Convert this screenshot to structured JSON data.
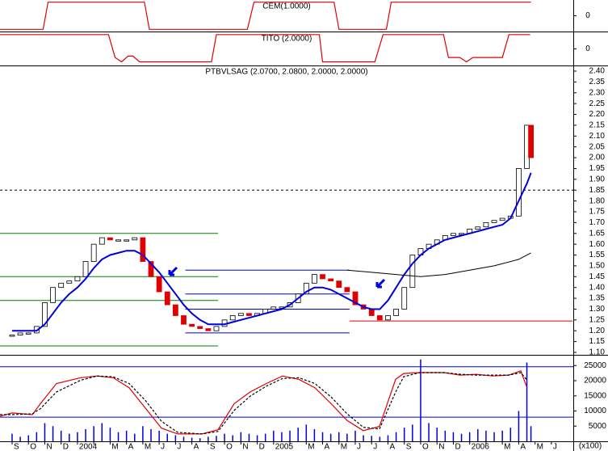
{
  "chart_data": [
    {
      "type": "step",
      "title": "CEM(1.0000)",
      "color": "#e00000",
      "xlim": [
        -0.74,
        34.34
      ],
      "ylim": [
        -1.1,
        1.1
      ],
      "yticks": [
        0
      ],
      "x": [
        -0.74,
        1.9,
        2.2,
        8.1,
        8.4,
        14.4,
        14.8,
        19.7,
        20,
        22.9,
        23.2,
        31.75
      ],
      "values": [
        -1,
        -1,
        1,
        1,
        -1,
        -1,
        1,
        1,
        -1,
        -1,
        1,
        1
      ]
    },
    {
      "type": "step",
      "title": "TITO (2.0000)",
      "color": "#e00000",
      "xlim": [
        -0.74,
        34.34
      ],
      "ylim": [
        -1.1,
        1.1
      ],
      "yticks": [
        0
      ],
      "x": [
        -0.74,
        5.9,
        6.3,
        6.7,
        7.1,
        7.4,
        7.8,
        12.2,
        12.5,
        18.8,
        19.0,
        22.2,
        22.7,
        26.4,
        26.7,
        27.4,
        27.8,
        28.2,
        30.0,
        30.4,
        31.7
      ],
      "values": [
        1,
        1,
        -0.6,
        -0.9,
        -0.5,
        -0.5,
        -0.9,
        -0.9,
        1,
        1,
        -0.9,
        -0.9,
        1,
        1,
        -0.6,
        -0.6,
        -0.9,
        -0.6,
        -0.6,
        1,
        1
      ]
    },
    {
      "type": "stock",
      "title": "PTBVLSAG (2.0700, 2.0800, 2.0000, 2.0000)",
      "xlim": [
        -0.74,
        34.34
      ],
      "ylim": [
        1.0925,
        2.4224
      ],
      "yticks": [
        {
          "value": 1.1,
          "label": "1.10"
        },
        1.15,
        {
          "value": 1.2,
          "label": "1.20"
        },
        1.25,
        {
          "value": 1.3,
          "label": "1.30"
        },
        1.35,
        {
          "value": 1.4,
          "label": "1.40"
        },
        1.45,
        {
          "value": 1.5,
          "label": "1.50"
        },
        1.55,
        {
          "value": 1.6,
          "label": "1.60"
        },
        1.65,
        {
          "value": 1.7,
          "label": "1.70"
        },
        1.75,
        {
          "value": 1.8,
          "label": "1.80"
        },
        1.85,
        {
          "value": 1.9,
          "label": "1.90"
        },
        1.95,
        {
          "value": 2,
          "label": "2.00"
        },
        2.05,
        {
          "value": 2.1,
          "label": "2.10"
        },
        2.15,
        {
          "value": 2.2,
          "label": "2.20"
        },
        2.25,
        {
          "value": 2.3,
          "label": "2.30"
        },
        2.35,
        {
          "value": 2.4,
          "label": "2.40"
        }
      ],
      "up_color": "#ffffff",
      "down_color": "#e00000",
      "x": [
        0,
        0.5,
        1,
        1.5,
        2,
        2.5,
        3,
        3.5,
        4,
        4.5,
        5,
        5.5,
        6,
        6.5,
        7,
        7.5,
        8,
        8.5,
        9,
        9.5,
        10,
        10.5,
        11,
        11.5,
        12,
        12.5,
        13,
        13.5,
        14,
        14.5,
        15,
        15.5,
        16,
        16.5,
        17,
        17.5,
        18,
        18.5,
        19,
        19.5,
        20,
        20.5,
        21,
        21.5,
        22,
        22.5,
        23,
        23.5,
        24,
        24.5,
        25,
        25.5,
        26,
        26.5,
        27,
        27.5,
        28,
        28.5,
        29,
        29.5,
        30,
        30.5,
        31,
        31.5,
        31.75
      ],
      "values": [
        1.18,
        1.19,
        1.19,
        1.22,
        1.33,
        1.4,
        1.42,
        1.43,
        1.45,
        1.52,
        1.6,
        1.63,
        1.62,
        1.62,
        1.62,
        1.63,
        1.52,
        1.45,
        1.38,
        1.32,
        1.27,
        1.23,
        1.22,
        1.21,
        1.2,
        1.22,
        1.25,
        1.27,
        1.28,
        1.27,
        1.28,
        1.3,
        1.31,
        1.31,
        1.33,
        1.37,
        1.42,
        1.46,
        1.44,
        1.43,
        1.4,
        1.38,
        1.32,
        1.3,
        1.27,
        1.25,
        1.27,
        1.3,
        1.4,
        1.55,
        1.58,
        1.6,
        1.62,
        1.64,
        1.65,
        1.65,
        1.67,
        1.68,
        1.7,
        1.71,
        1.72,
        1.73,
        1.95,
        2.15,
        2.0
      ],
      "average": {
        "color": "#0000e0",
        "values": [
          1.2,
          1.2,
          1.2,
          1.2,
          1.23,
          1.28,
          1.33,
          1.37,
          1.4,
          1.44,
          1.49,
          1.53,
          1.55,
          1.56,
          1.57,
          1.57,
          1.55,
          1.51,
          1.47,
          1.42,
          1.37,
          1.32,
          1.28,
          1.25,
          1.23,
          1.23,
          1.23,
          1.24,
          1.25,
          1.26,
          1.27,
          1.28,
          1.29,
          1.3,
          1.32,
          1.35,
          1.38,
          1.4,
          1.4,
          1.39,
          1.37,
          1.35,
          1.33,
          1.31,
          1.3,
          1.3,
          1.34,
          1.4,
          1.46,
          1.51,
          1.55,
          1.58,
          1.6,
          1.62,
          1.63,
          1.64,
          1.65,
          1.66,
          1.67,
          1.68,
          1.69,
          1.72,
          1.8,
          1.88,
          1.93
        ]
      },
      "long_average": {
        "color": "#000000",
        "x": [
          20.5,
          22,
          23.5,
          25,
          26.5,
          28,
          29.5,
          31,
          31.75
        ],
        "values": [
          1.48,
          1.47,
          1.46,
          1.45,
          1.46,
          1.48,
          1.5,
          1.53,
          1.56
        ]
      },
      "hlines": [
        {
          "value": 1.65,
          "x": [
            -0.74,
            12.6
          ],
          "color": "#008000"
        },
        {
          "value": 1.45,
          "x": [
            -0.74,
            12.6
          ],
          "color": "#008000"
        },
        {
          "value": 1.34,
          "x": [
            -0.74,
            12.6
          ],
          "color": "#008000"
        },
        {
          "value": 1.13,
          "x": [
            -0.74,
            12.6
          ],
          "color": "#008000"
        },
        {
          "value": 1.48,
          "x": [
            10.6,
            20.65
          ],
          "color": "#0000e0"
        },
        {
          "value": 1.37,
          "x": [
            10.6,
            20.65
          ],
          "color": "#0000e0"
        },
        {
          "value": 1.3,
          "x": [
            10.6,
            20.65
          ],
          "color": "#0000e0"
        },
        {
          "value": 1.19,
          "x": [
            10.6,
            20.65
          ],
          "color": "#0000e0"
        },
        {
          "value": 1.245,
          "x": [
            20.65,
            34.3
          ],
          "color": "#e00000"
        },
        {
          "value": 1.85,
          "x": [
            -0.74,
            34.34
          ],
          "color": "#000000",
          "dashed": true
        }
      ]
    },
    {
      "type": "indicator",
      "xlim": [
        -0.74,
        34.34
      ],
      "ylim": [
        -8.7,
        93.2
      ],
      "levels": [
        20,
        80
      ],
      "level_color": "#0000e0",
      "categories": [
        "S",
        "O",
        "N",
        "D",
        "2004",
        null,
        "M",
        "A",
        "M",
        "J",
        "J",
        "A",
        "S",
        "O",
        "N",
        "D",
        "2005",
        null,
        "M",
        "A",
        "M",
        "J",
        "J",
        "A",
        "S",
        "O",
        "N",
        "D",
        "2006",
        null,
        "M",
        "A",
        "M",
        "J"
      ],
      "x": [
        -0.74,
        0,
        1.24,
        1.73,
        2.72,
        4.2,
        5.19,
        6.18,
        7.16,
        8.15,
        9.14,
        10.13,
        11.61,
        12.6,
        13.59,
        14.57,
        15.56,
        16.55,
        17.54,
        18.53,
        19.52,
        20.5,
        21.49,
        22.48,
        23.47,
        23.96,
        24.95,
        26.43,
        27.42,
        28.41,
        29.4,
        30.38,
        31.13,
        31.47
      ],
      "series": [
        {
          "color": "#e00000",
          "values": [
            21,
            25,
            23,
            36,
            60,
            67,
            69,
            67,
            55,
            31,
            7,
            0,
            0,
            5,
            36,
            50,
            60,
            69,
            65,
            55,
            36,
            16,
            4,
            9,
            65,
            72,
            73,
            73,
            70,
            71,
            69,
            70,
            75,
            57
          ]
        },
        {
          "color": "#000000",
          "dashed": true,
          "values": [
            23,
            23,
            24,
            30,
            50,
            64,
            69,
            68,
            60,
            40,
            15,
            2,
            0,
            3,
            28,
            45,
            57,
            66,
            67,
            60,
            44,
            24,
            8,
            6,
            50,
            68,
            73,
            73,
            71,
            70,
            70,
            70,
            73,
            65
          ]
        }
      ],
      "volume": {
        "color": "#0000e0",
        "x": [
          0,
          0.5,
          1,
          1.5,
          2,
          2.5,
          3,
          3.5,
          4,
          4.5,
          5,
          5.5,
          6,
          6.5,
          7,
          7.5,
          8,
          8.5,
          9,
          9.5,
          10,
          10.5,
          11,
          11.5,
          12,
          12.5,
          13,
          13.5,
          14,
          14.5,
          15,
          15.5,
          16,
          16.5,
          17,
          17.5,
          18,
          18.5,
          19,
          19.5,
          20,
          20.5,
          21,
          21.5,
          22,
          22.5,
          23,
          23.5,
          24,
          24.5,
          25,
          25.5,
          26,
          26.5,
          27,
          27.5,
          28,
          28.5,
          29,
          29.5,
          30,
          30.5,
          31,
          31.5,
          31.75
        ],
        "values": [
          2500,
          1500,
          2000,
          3000,
          6000,
          5000,
          3500,
          2500,
          3000,
          4000,
          5000,
          6000,
          4500,
          3000,
          3500,
          2500,
          5000,
          4000,
          3500,
          2500,
          2000,
          1500,
          1200,
          1000,
          1500,
          1800,
          2500,
          2000,
          3000,
          2500,
          2000,
          2500,
          3500,
          3000,
          3500,
          4500,
          5500,
          4000,
          3000,
          2500,
          3000,
          2500,
          3500,
          2000,
          1800,
          1500,
          2000,
          3000,
          4500,
          5500,
          27000,
          6000,
          4500,
          3500,
          3000,
          2500,
          3000,
          4000,
          3500,
          3000,
          3500,
          4500,
          10000,
          26000,
          5000
        ]
      },
      "y2lim": [
        0,
        28000
      ],
      "y2ticks": [
        5000,
        10000,
        15000,
        20000,
        25000
      ],
      "volume_unit": "(x100)"
    }
  ]
}
